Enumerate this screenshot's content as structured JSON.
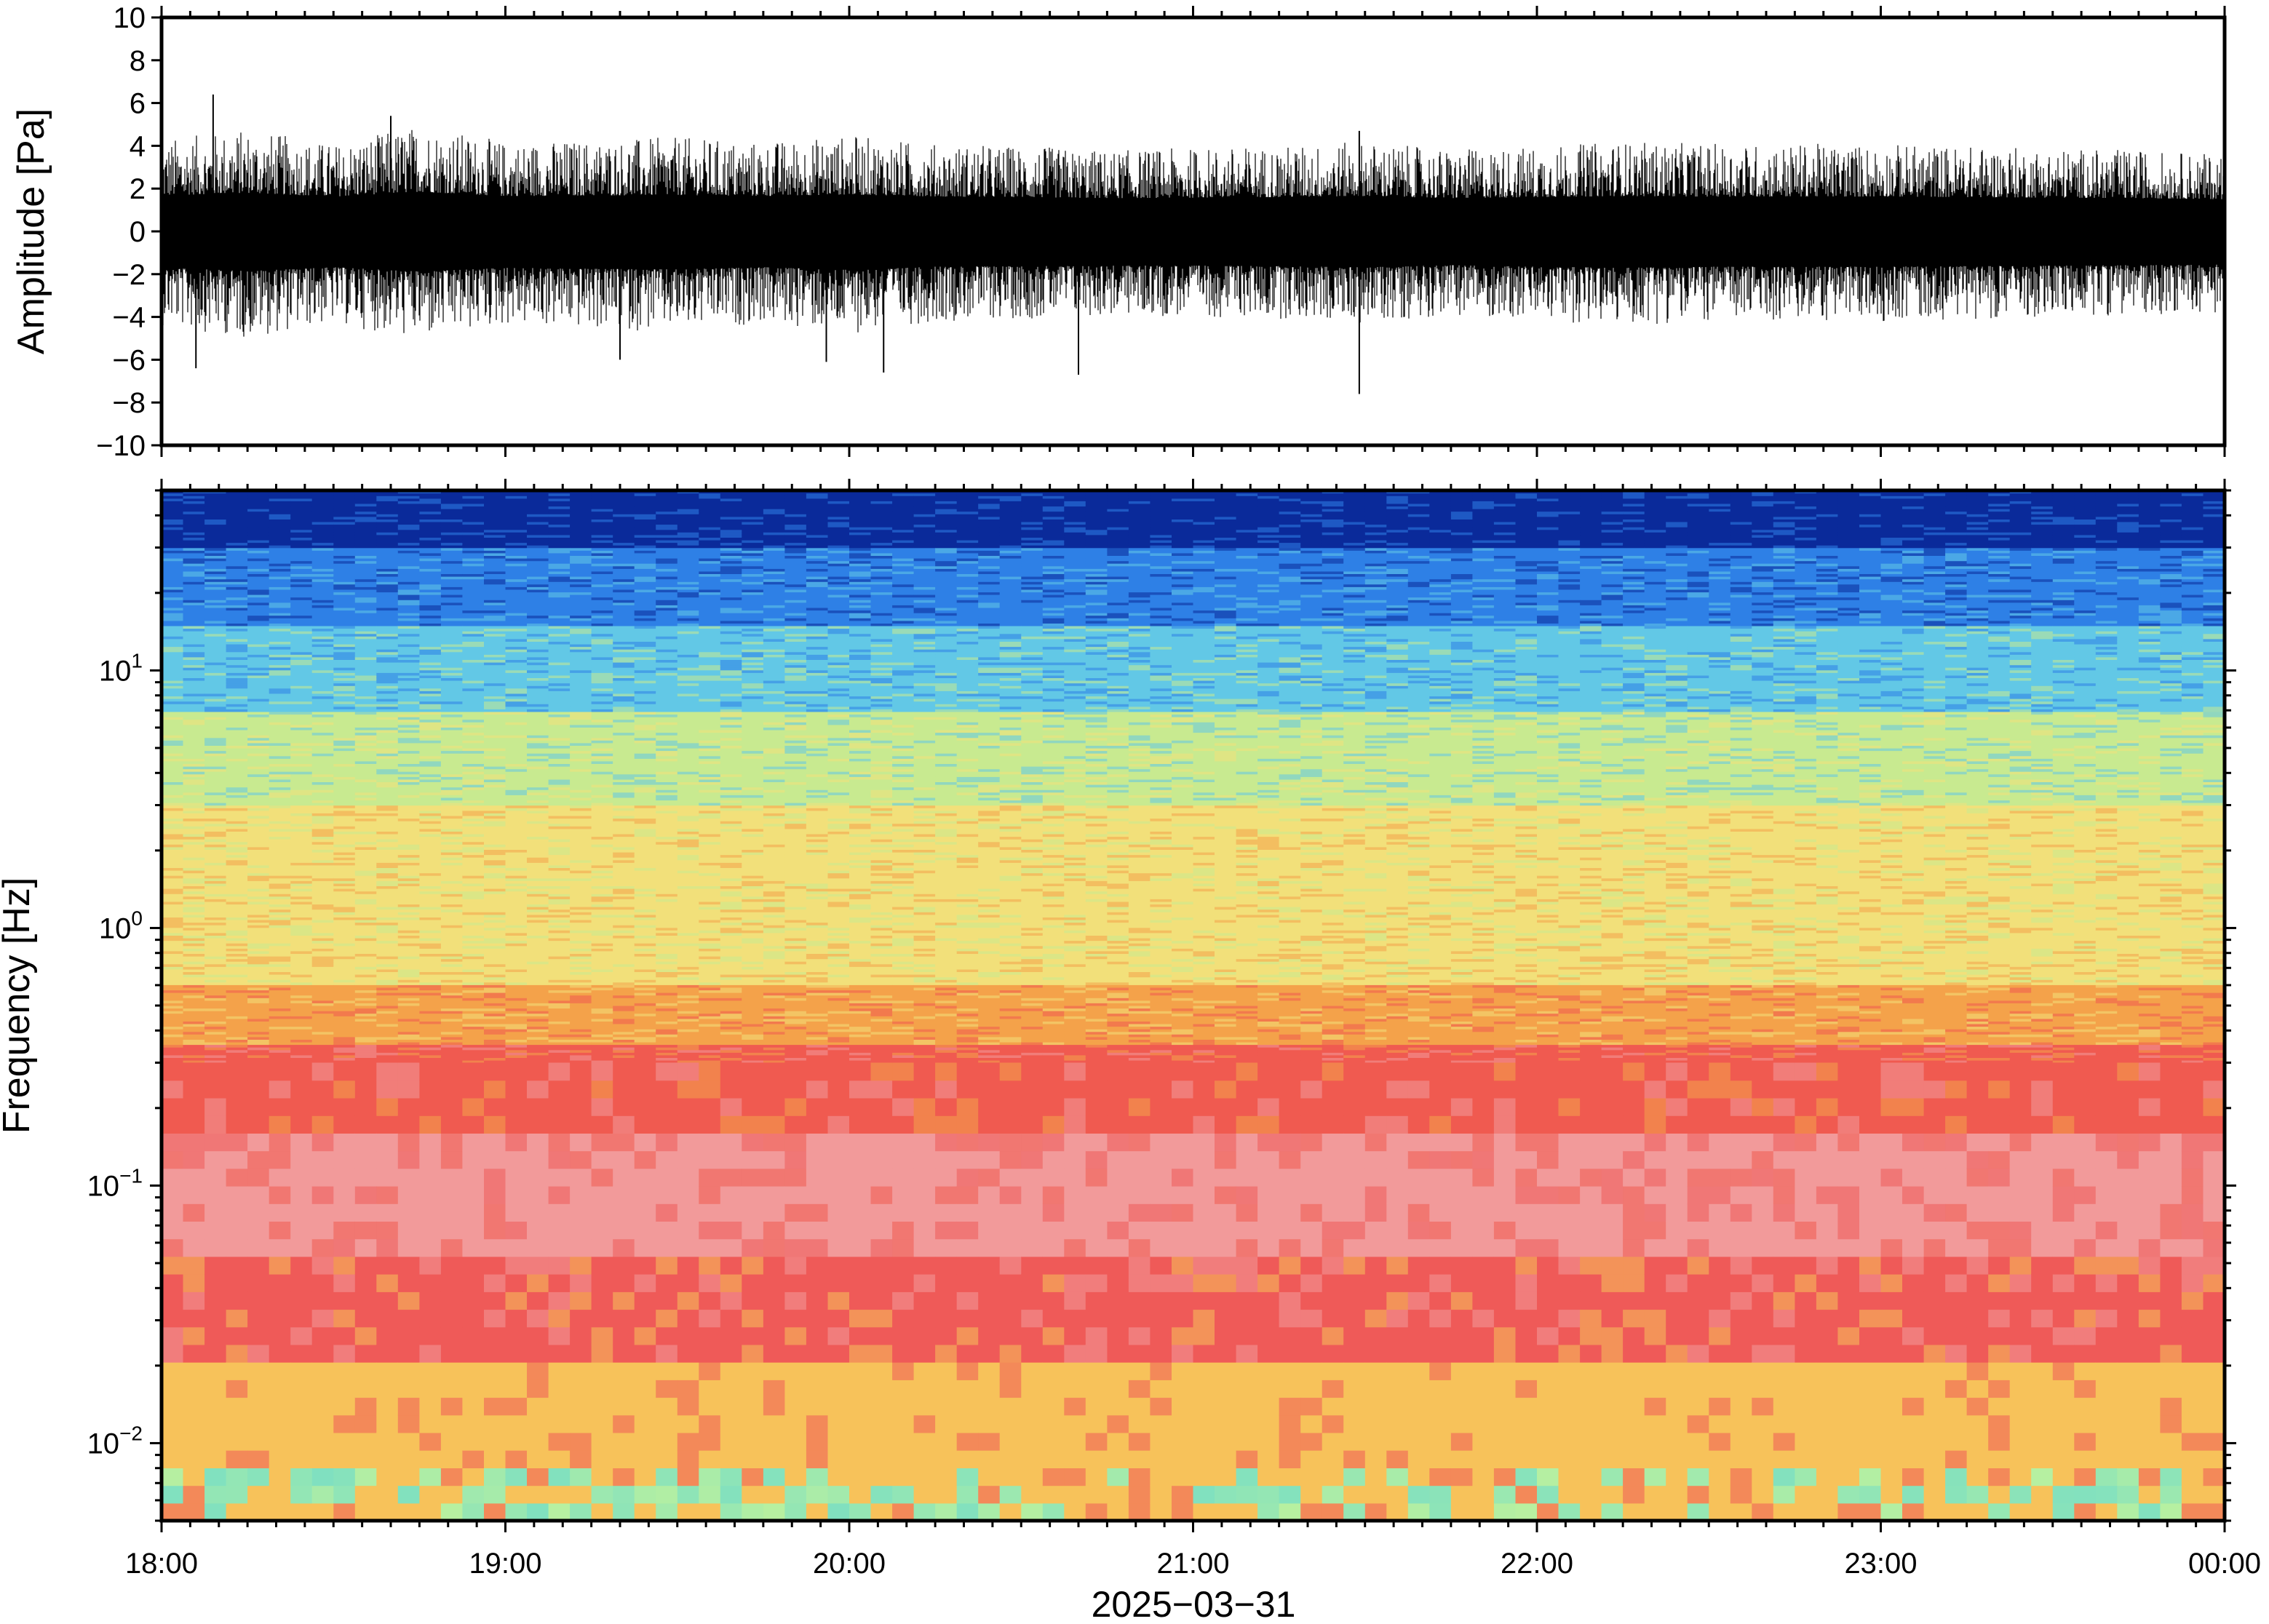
{
  "chart_data": [
    {
      "type": "line",
      "title": "",
      "ylabel": "Amplitude [Pa]",
      "ylim": [
        -10,
        10
      ],
      "yticks": [
        {
          "value": 10,
          "label": "10"
        },
        {
          "value": 8,
          "label": "8"
        },
        {
          "value": 6,
          "label": "6"
        },
        {
          "value": 4,
          "label": "4"
        },
        {
          "value": 2,
          "label": "2"
        },
        {
          "value": 0,
          "label": "0"
        },
        {
          "value": -2,
          "label": "−2"
        },
        {
          "value": -4,
          "label": "−4"
        },
        {
          "value": -6,
          "label": "−6"
        },
        {
          "value": -8,
          "label": "−8"
        },
        {
          "value": -10,
          "label": "−10"
        }
      ],
      "xlim": [
        "2025-03-31 18:00",
        "2025-04-01 00:00"
      ],
      "series": [
        {
          "color": "#000000",
          "x": [
            "18:00",
            "18:15",
            "18:30",
            "18:45",
            "19:00",
            "19:15",
            "19:30",
            "19:45",
            "20:00",
            "20:15",
            "20:30",
            "20:45",
            "21:00",
            "21:15",
            "21:30",
            "21:45",
            "22:00",
            "22:15",
            "22:30",
            "22:45",
            "23:00",
            "23:15",
            "23:30",
            "23:45",
            "00:00"
          ],
          "envelope_max": [
            3.5,
            4.0,
            3.3,
            4.2,
            3.4,
            3.5,
            3.6,
            3.4,
            3.7,
            3.3,
            3.2,
            3.0,
            3.1,
            3.2,
            3.4,
            3.0,
            3.2,
            3.4,
            3.3,
            3.3,
            3.3,
            3.2,
            3.1,
            3.0,
            2.8
          ],
          "envelope_min": [
            -3.6,
            -4.2,
            -3.5,
            -4.3,
            -3.6,
            -3.8,
            -3.9,
            -3.5,
            -4.0,
            -3.4,
            -3.3,
            -3.2,
            -3.2,
            -3.3,
            -3.5,
            -3.1,
            -3.4,
            -3.6,
            -3.4,
            -3.4,
            -3.4,
            -3.3,
            -3.2,
            -3.1,
            -3.0
          ]
        }
      ],
      "annotations_peaks": [
        {
          "x": "18:09",
          "y": 6.4
        },
        {
          "x": "18:06",
          "y": -6.4
        },
        {
          "x": "18:40",
          "y": 5.4
        },
        {
          "x": "19:20",
          "y": -6.0
        },
        {
          "x": "19:56",
          "y": -6.1
        },
        {
          "x": "20:06",
          "y": -6.6
        },
        {
          "x": "20:40",
          "y": -6.7
        },
        {
          "x": "21:29",
          "y": 4.7
        },
        {
          "x": "21:29",
          "y": -7.6
        }
      ]
    },
    {
      "type": "heatmap",
      "title": "",
      "ylabel": "Frequency [Hz]",
      "yscale": "log",
      "ylim": [
        0.005,
        50
      ],
      "yticks": [
        {
          "value": 10,
          "base": "10",
          "exp": "1"
        },
        {
          "value": 1,
          "base": "10",
          "exp": "0"
        },
        {
          "value": 0.1,
          "base": "10",
          "exp": "−1"
        },
        {
          "value": 0.01,
          "base": "10",
          "exp": "−2"
        }
      ],
      "xlim": [
        "2025-03-31 18:00",
        "2025-04-01 00:00"
      ],
      "xticks": [
        "18:00",
        "19:00",
        "20:00",
        "21:00",
        "22:00",
        "23:00",
        "00:00"
      ],
      "xlabel": "2025−03−31",
      "colormap": [
        "#0a2a9a",
        "#1a6be0",
        "#35b0f0",
        "#7adfd0",
        "#d8f090",
        "#f5e070",
        "#f6b040",
        "#f07048",
        "#f08a90",
        "#f5b0b0"
      ],
      "frequency_bands_hz": [
        {
          "from": 30,
          "to": 50,
          "color": "#0a2a9a"
        },
        {
          "from": 15,
          "to": 30,
          "color": "#2e80e6"
        },
        {
          "from": 7,
          "to": 15,
          "color": "#62c8e6"
        },
        {
          "from": 3,
          "to": 7,
          "color": "#c8ea90"
        },
        {
          "from": 0.6,
          "to": 3,
          "color": "#f2e07a"
        },
        {
          "from": 0.35,
          "to": 0.6,
          "color": "#f4a24a"
        },
        {
          "from": 0.15,
          "to": 0.35,
          "color": "#f05a50"
        },
        {
          "from": 0.05,
          "to": 0.15,
          "color": "#f29a9a"
        },
        {
          "from": 0.02,
          "to": 0.05,
          "color": "#ef5a58"
        },
        {
          "from": 0.005,
          "to": 0.02,
          "color": "#f7c25a"
        }
      ]
    }
  ]
}
